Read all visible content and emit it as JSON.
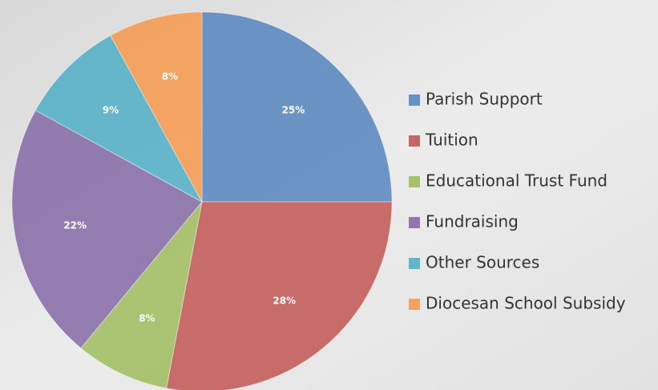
{
  "chart_data": {
    "type": "pie",
    "categories": [
      "Parish Support",
      "Tuition",
      "Educational Trust Fund",
      "Fundraising",
      "Other Sources",
      "Diocesan School Subsidy"
    ],
    "values": [
      25,
      28,
      8,
      22,
      9,
      8
    ],
    "value_labels": [
      "25%",
      "28%",
      "8%",
      "22%",
      "9%",
      "8%"
    ],
    "colors": [
      "#4f81bd",
      "#c0504d",
      "#9bbb59",
      "#8064a2",
      "#4bacc6",
      "#f79646"
    ],
    "legend": "right"
  }
}
